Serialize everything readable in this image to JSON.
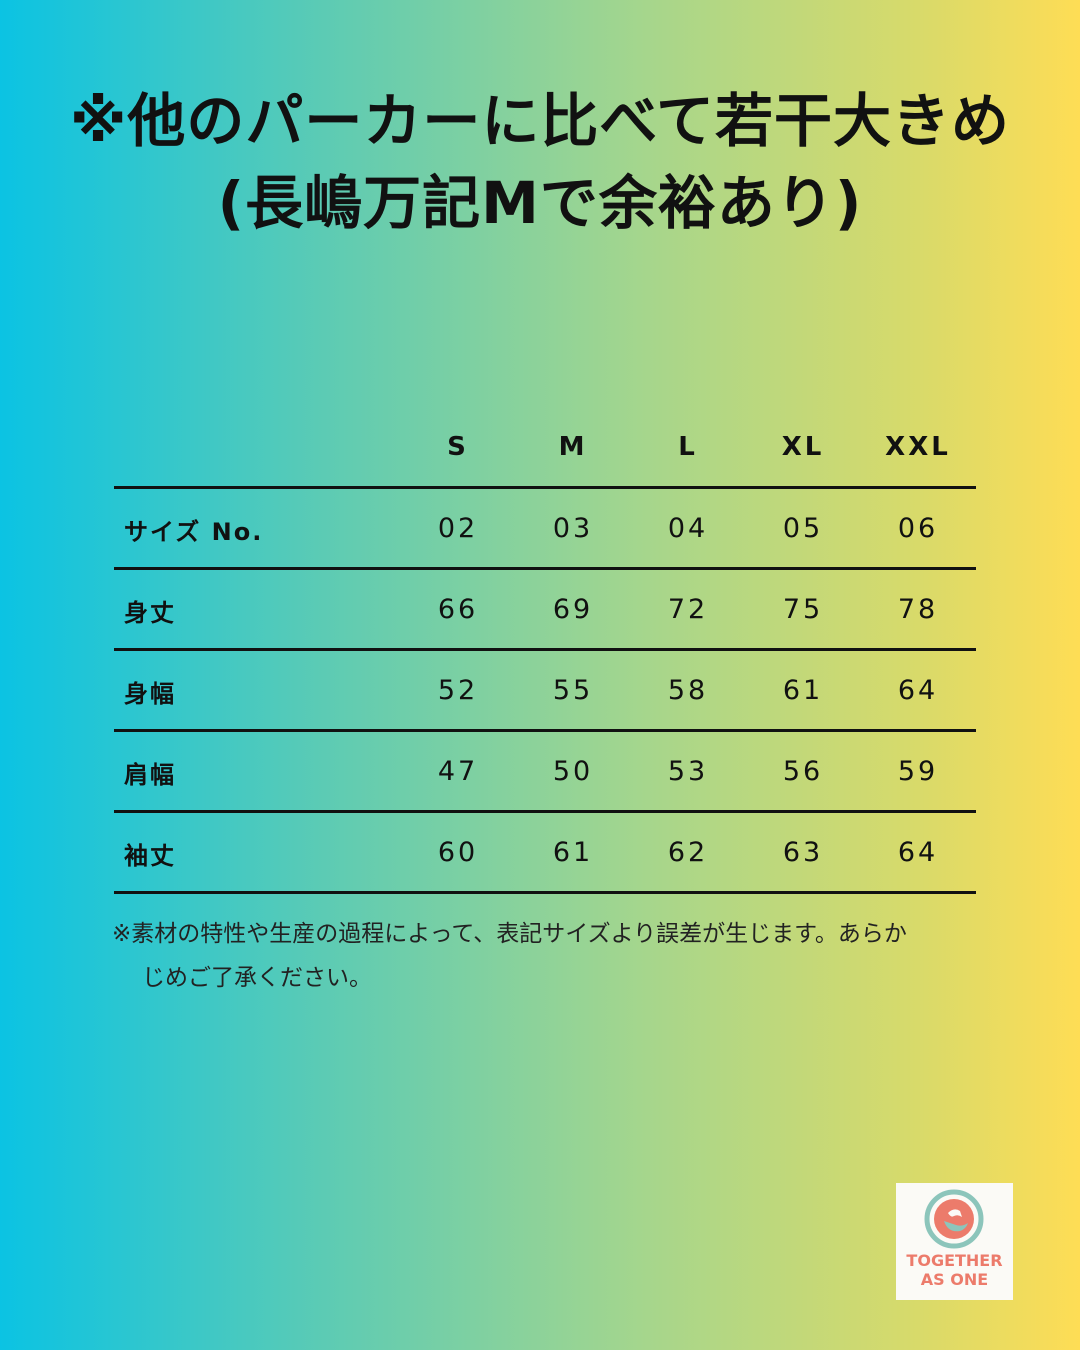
{
  "title": {
    "line1": "※他のパーカーに比べて若干大きめ",
    "line2": "(長嶋万記Mで余裕あり)"
  },
  "table": {
    "columns": [
      "S",
      "M",
      "L",
      "XL",
      "XXL"
    ],
    "rows": [
      {
        "label": "サイズ No.",
        "values": [
          "02",
          "03",
          "04",
          "05",
          "06"
        ]
      },
      {
        "label": "身丈",
        "values": [
          "66",
          "69",
          "72",
          "75",
          "78"
        ]
      },
      {
        "label": "身幅",
        "values": [
          "52",
          "55",
          "58",
          "61",
          "64"
        ]
      },
      {
        "label": "肩幅",
        "values": [
          "47",
          "50",
          "53",
          "56",
          "59"
        ]
      },
      {
        "label": "袖丈",
        "values": [
          "60",
          "61",
          "62",
          "63",
          "64"
        ]
      }
    ]
  },
  "note": {
    "line1": "※素材の特性や生産の過程によって、表記サイズより誤差が生じます。あらか",
    "line2": "じめご了承ください。"
  },
  "logo": {
    "line1": "TOGETHER",
    "line2": "AS ONE",
    "colors": {
      "coral": "#ec7b6b",
      "teal": "#8cc5bb"
    }
  }
}
